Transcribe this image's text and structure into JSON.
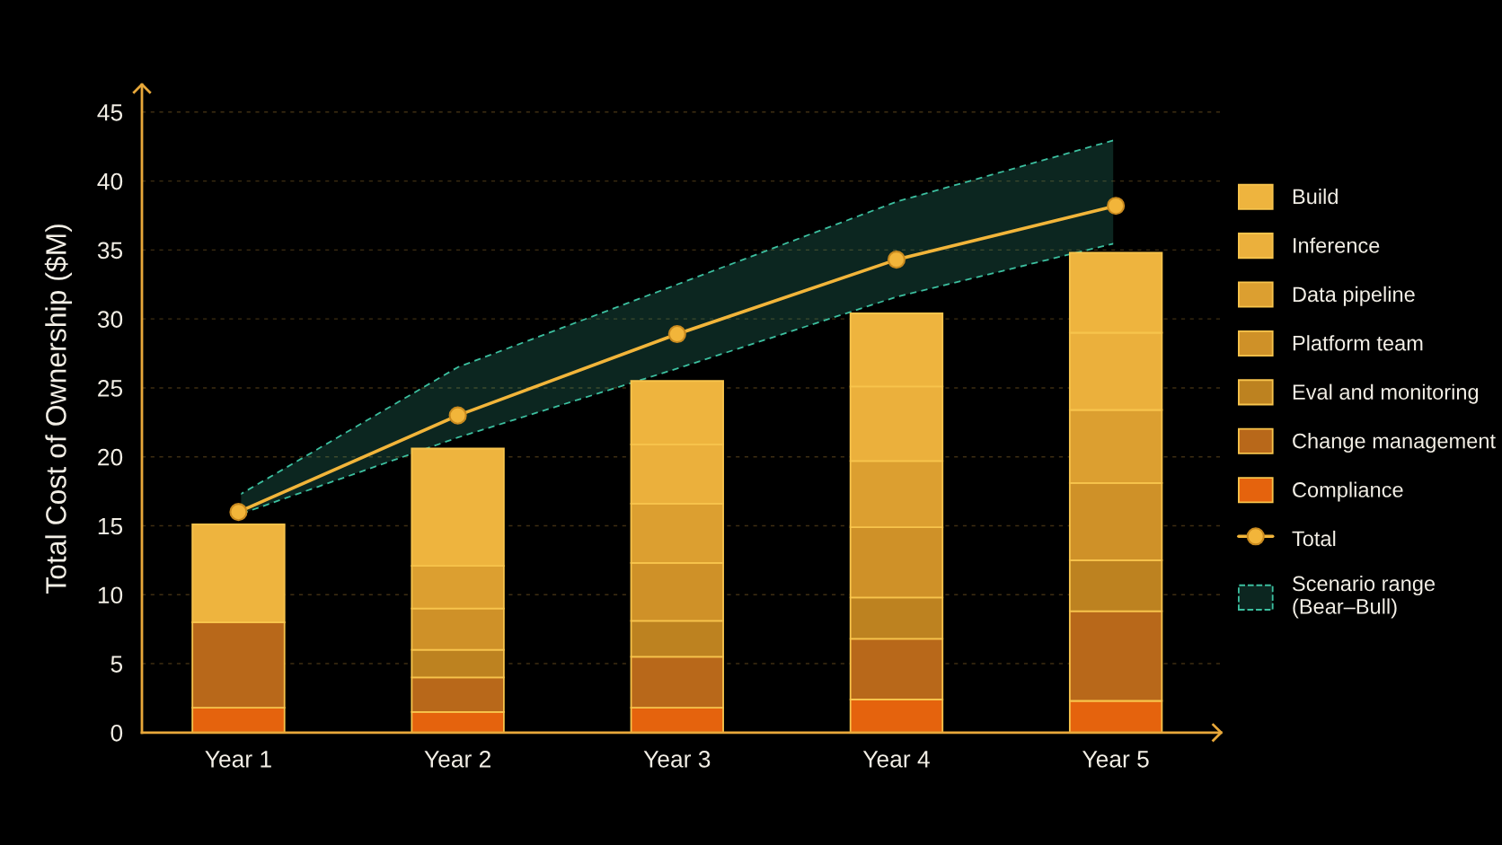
{
  "chart_data": {
    "type": "bar",
    "stacked": true,
    "ylabel": "Total Cost of Ownership ($M)",
    "categories": [
      "Year 1",
      "Year 2",
      "Year 3",
      "Year 4",
      "Year 5"
    ],
    "series": [
      {
        "name": "Compliance",
        "color": "#e5630d",
        "values": [
          1.8,
          1.5,
          1.8,
          2.4,
          2.3
        ]
      },
      {
        "name": "Change management",
        "color": "#b8681a",
        "values": [
          6.2,
          2.5,
          3.7,
          4.4,
          6.5
        ]
      },
      {
        "name": "Eval and monitoring",
        "color": "#bd8220",
        "values": [
          null,
          2.0,
          2.6,
          3.0,
          3.7
        ]
      },
      {
        "name": "Platform team",
        "color": "#cf9128",
        "values": [
          null,
          3.0,
          4.2,
          5.1,
          5.6
        ]
      },
      {
        "name": "Data pipeline",
        "color": "#dc9f30",
        "values": [
          null,
          3.1,
          4.3,
          4.8,
          5.3
        ]
      },
      {
        "name": "Inference",
        "color": "#ebb03c",
        "values": [
          null,
          null,
          4.3,
          5.4,
          5.6
        ]
      },
      {
        "name": "Build",
        "color": "#eeb43e",
        "values": [
          7.1,
          8.5,
          4.6,
          5.3,
          5.8
        ]
      },
      {
        "name": "Total",
        "type": "line",
        "color": "#f2b53a",
        "marker": "circle",
        "values": [
          16.0,
          23.0,
          28.9,
          34.3,
          38.2
        ]
      },
      {
        "name": "Scenario range\n(Bear–Bull)",
        "type": "area",
        "color": "#3cbf9f",
        "line_style": "dashed",
        "values": [
          null,
          null,
          null,
          null,
          null
        ],
        "lower": [
          15.8,
          21.4,
          26.4,
          31.6,
          35.5
        ],
        "upper": [
          17.2,
          26.5,
          32.5,
          38.5,
          43.0
        ]
      }
    ],
    "ylim": [
      0,
      47
    ],
    "yticks": [
      0,
      5,
      10,
      15,
      20,
      25,
      30,
      35,
      40,
      45
    ],
    "grid": "y",
    "legend": "right"
  }
}
